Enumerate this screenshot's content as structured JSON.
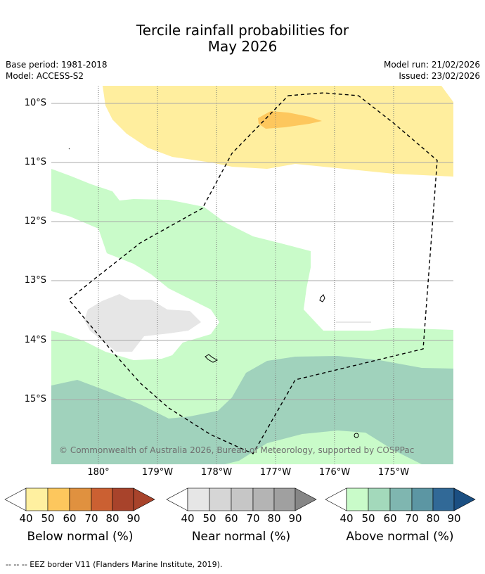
{
  "title_line1": "Tercile rainfall probabilities for",
  "title_line2": "May 2026",
  "base_period": "Base period: 1981-2018",
  "model": "Model: ACCESS-S2",
  "model_run": "Model run: 21/02/2026",
  "issued": "Issued: 23/02/2026",
  "lat_labels": [
    "10°S",
    "11°S",
    "12°S",
    "13°S",
    "14°S",
    "15°S"
  ],
  "lon_labels": [
    "180°",
    "179°W",
    "178°W",
    "177°W",
    "176°W",
    "175°W"
  ],
  "copyright": "© Commonwealth of Australia 2026, Bureau of Meteorology, supported by COSPPac",
  "legends": [
    {
      "label": "Below normal (%)",
      "ticks": [
        "40",
        "50",
        "60",
        "70",
        "80",
        "90"
      ],
      "colors": [
        "#fff0a0",
        "#fdc75d",
        "#e0913f",
        "#cb6032",
        "#a8432b",
        "#a8432b"
      ]
    },
    {
      "label": "Near normal (%)",
      "ticks": [
        "40",
        "50",
        "60",
        "70",
        "80",
        "90"
      ],
      "colors": [
        "#e6e6e6",
        "#d6d6d6",
        "#c6c6c6",
        "#b4b4b4",
        "#a0a0a0",
        "#868686"
      ]
    },
    {
      "label": "Above normal (%)",
      "ticks": [
        "40",
        "50",
        "60",
        "70",
        "80",
        "90"
      ],
      "colors": [
        "#c9fbc9",
        "#a3d9bb",
        "#7fb6b0",
        "#5c96a3",
        "#316997",
        "#1b4f82"
      ]
    }
  ],
  "footnote": "--  --  -- EEZ border V11 (Flanders Marine Institute, 2019).",
  "colors": {
    "below_40": "#fff0a0",
    "below_50": "#fdc75d",
    "near_40": "#e6e6e6",
    "above_40": "#c9fbc9",
    "above_50": "#a0d2bc"
  }
}
